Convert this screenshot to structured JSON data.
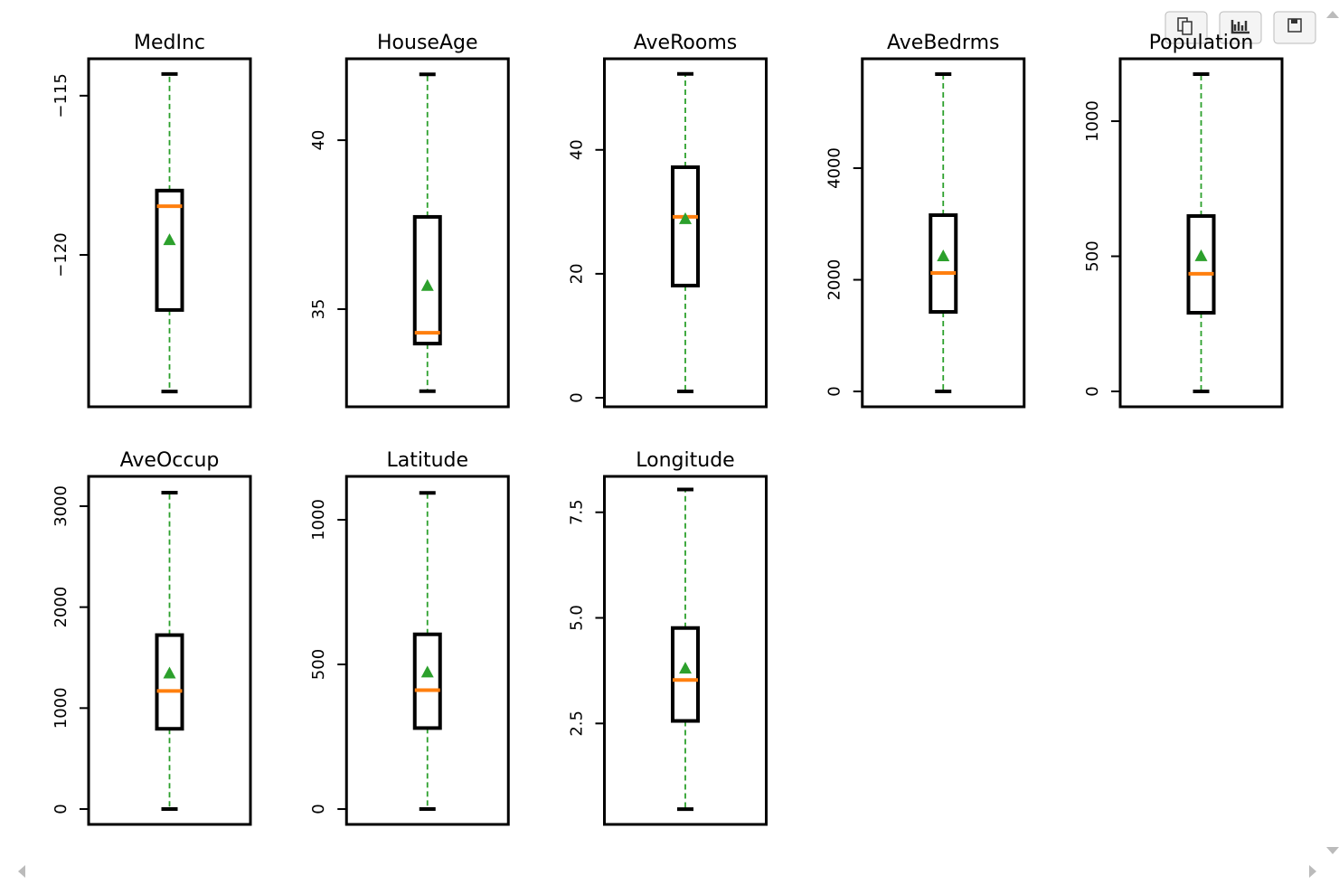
{
  "chart_data": [
    {
      "type": "box",
      "title": "MedInc",
      "ylim": [
        -124.77,
        -113.84
      ],
      "yticks": [
        {
          "value": -115,
          "label": "−115"
        },
        {
          "value": -120,
          "label": "−120"
        }
      ],
      "box": {
        "whisker_low": -124.29,
        "q1": -121.73,
        "median": -118.47,
        "q3": -117.98,
        "whisker_high": -114.32,
        "mean": -119.52
      },
      "box_color": "#000000",
      "median_color": "#ff7f0e",
      "whisker_color": "#2ca02c",
      "mean_color": "#2ca02c"
    },
    {
      "type": "box",
      "title": "HouseAge",
      "ylim": [
        32.11,
        42.41
      ],
      "yticks": [
        35,
        40
      ],
      "box": {
        "whisker_low": 32.57,
        "q1": 33.98,
        "median": 34.3,
        "q3": 37.73,
        "whisker_high": 41.95,
        "mean": 35.7
      },
      "box_color": "#000000",
      "median_color": "#ff7f0e",
      "whisker_color": "#2ca02c",
      "mean_color": "#2ca02c"
    },
    {
      "type": "box",
      "title": "AveRooms",
      "ylim": [
        -1.46,
        54.7
      ],
      "yticks": [
        0,
        20,
        40
      ],
      "box": {
        "whisker_low": 1.02,
        "q1": 18.1,
        "median": 29.2,
        "q3": 37.2,
        "whisker_high": 52.26,
        "mean": 28.9
      },
      "box_color": "#000000",
      "median_color": "#ff7f0e",
      "whisker_color": "#2ca02c",
      "mean_color": "#2ca02c"
    },
    {
      "type": "box",
      "title": "AveBedrms",
      "ylim": [
        -275,
        5960
      ],
      "yticks": [
        0,
        2000,
        4000
      ],
      "box": {
        "whisker_low": 0,
        "q1": 1425,
        "median": 2121,
        "q3": 3158,
        "whisker_high": 5684,
        "mean": 2429
      },
      "box_color": "#000000",
      "median_color": "#ff7f0e",
      "whisker_color": "#2ca02c",
      "mean_color": "#2ca02c"
    },
    {
      "type": "box",
      "title": "Population",
      "ylim": [
        -57,
        1231
      ],
      "yticks": [
        0,
        500,
        1000
      ],
      "box": {
        "whisker_low": 0,
        "q1": 291,
        "median": 435,
        "q3": 649,
        "whisker_high": 1174,
        "mean": 502
      },
      "box_color": "#000000",
      "median_color": "#ff7f0e",
      "whisker_color": "#2ca02c",
      "mean_color": "#2ca02c"
    },
    {
      "type": "box",
      "title": "AveOccup",
      "ylim": [
        -152,
        3295
      ],
      "yticks": [
        0,
        1000,
        2000,
        3000
      ],
      "box": {
        "whisker_low": 0,
        "q1": 795,
        "median": 1170,
        "q3": 1723,
        "whisker_high": 3134,
        "mean": 1348
      },
      "box_color": "#000000",
      "median_color": "#ff7f0e",
      "whisker_color": "#2ca02c",
      "mean_color": "#2ca02c"
    },
    {
      "type": "box",
      "title": "Latitude",
      "ylim": [
        -53,
        1150
      ],
      "yticks": [
        0,
        500,
        1000
      ],
      "box": {
        "whisker_low": 0,
        "q1": 280,
        "median": 411,
        "q3": 604,
        "whisker_high": 1093,
        "mean": 474
      },
      "box_color": "#000000",
      "median_color": "#ff7f0e",
      "whisker_color": "#2ca02c",
      "mean_color": "#2ca02c"
    },
    {
      "type": "box",
      "title": "Longitude",
      "ylim": [
        0.11,
        8.35
      ],
      "yticks": [
        2.5,
        {
          "value": 5,
          "label": "5.0"
        },
        7.5
      ],
      "box": {
        "whisker_low": 0.47,
        "q1": 2.56,
        "median": 3.53,
        "q3": 4.76,
        "whisker_high": 8.04,
        "mean": 3.81
      },
      "box_color": "#000000",
      "median_color": "#ff7f0e",
      "whisker_color": "#2ca02c",
      "mean_color": "#2ca02c"
    }
  ]
}
